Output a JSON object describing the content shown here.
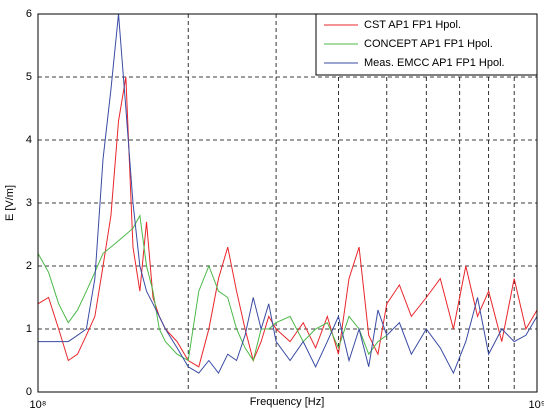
{
  "chart_data": {
    "type": "line",
    "xlabel": "Frequency [Hz]",
    "ylabel": "E [V/m]",
    "xscale": "log",
    "xlim": [
      100000000,
      1000000000
    ],
    "xticks": [
      {
        "value": 100000000,
        "label": "10⁸"
      },
      {
        "value": 1000000000,
        "label": "10⁹"
      }
    ],
    "xgrid_minor": [
      200000000,
      300000000,
      400000000,
      500000000,
      600000000,
      700000000,
      800000000,
      900000000
    ],
    "ylim": [
      0,
      6
    ],
    "yticks": [
      0,
      1,
      2,
      3,
      4,
      5,
      6
    ],
    "grid": true,
    "legend": "upper right",
    "x": [
      100000000,
      105000000,
      110000000,
      115000000,
      120000000,
      125000000,
      130000000,
      135000000,
      140000000,
      145000000,
      150000000,
      155000000,
      160000000,
      165000000,
      170000000,
      175000000,
      180000000,
      190000000,
      200000000,
      210000000,
      220000000,
      230000000,
      240000000,
      250000000,
      260000000,
      270000000,
      280000000,
      290000000,
      300000000,
      320000000,
      340000000,
      360000000,
      380000000,
      400000000,
      420000000,
      440000000,
      460000000,
      480000000,
      500000000,
      530000000,
      560000000,
      600000000,
      640000000,
      680000000,
      720000000,
      760000000,
      800000000,
      850000000,
      900000000,
      950000000,
      1000000000
    ],
    "series": [
      {
        "name": "CST AP1 FP1 Hpol.",
        "color": "#e8262b",
        "values": [
          1.4,
          1.5,
          1.0,
          0.5,
          0.6,
          0.9,
          1.2,
          2.0,
          2.8,
          4.3,
          5.0,
          2.3,
          1.6,
          2.7,
          1.5,
          1.2,
          1.0,
          0.8,
          0.5,
          0.4,
          1.0,
          1.8,
          2.3,
          1.6,
          1.0,
          0.5,
          0.8,
          1.2,
          1.0,
          0.8,
          1.1,
          0.7,
          1.2,
          0.6,
          1.8,
          2.3,
          0.9,
          0.6,
          1.4,
          1.7,
          1.2,
          1.5,
          1.8,
          1.0,
          2.0,
          1.2,
          1.6,
          0.8,
          1.8,
          1.0,
          1.3
        ]
      },
      {
        "name": "CONCEPT AP1 FP1 Hpol.",
        "color": "#4cb848",
        "values": [
          2.2,
          1.9,
          1.4,
          1.1,
          1.3,
          1.6,
          1.9,
          2.2,
          2.3,
          2.4,
          2.5,
          2.6,
          2.8,
          2.0,
          1.6,
          1.0,
          0.8,
          0.6,
          0.5,
          1.6,
          2.0,
          1.6,
          1.5,
          1.0,
          0.7,
          0.5,
          1.0,
          1.0,
          1.1,
          1.2,
          0.8,
          1.0,
          1.1,
          0.7,
          1.2,
          1.0,
          0.6,
          0.8,
          0.9,
          null,
          null,
          null,
          null,
          null,
          null,
          null,
          null,
          null,
          null,
          null,
          null
        ]
      },
      {
        "name": "Meas. EMCC AP1 FP1 Hpol.",
        "color": "#3a4ba3",
        "values": [
          0.8,
          0.8,
          0.8,
          0.8,
          0.9,
          1.0,
          1.8,
          3.7,
          4.8,
          6.0,
          4.5,
          3.0,
          2.0,
          1.6,
          1.4,
          1.2,
          1.0,
          0.7,
          0.4,
          0.3,
          0.5,
          0.3,
          0.6,
          0.5,
          0.9,
          1.5,
          1.0,
          1.4,
          0.8,
          0.5,
          0.8,
          0.4,
          0.8,
          1.2,
          0.5,
          1.0,
          0.4,
          1.3,
          0.9,
          1.1,
          0.6,
          1.0,
          0.7,
          0.3,
          0.8,
          1.5,
          0.6,
          1.0,
          0.8,
          0.9,
          1.2
        ]
      }
    ]
  }
}
